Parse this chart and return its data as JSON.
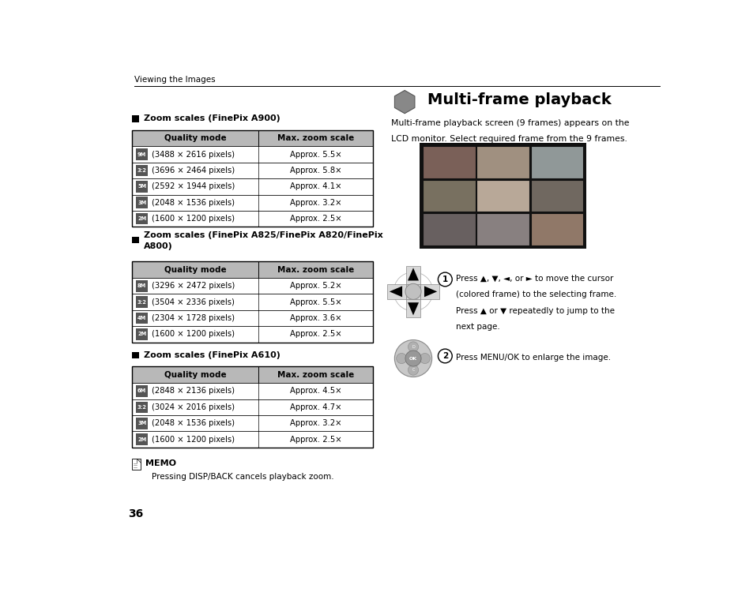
{
  "bg_color": "#ffffff",
  "page_width": 9.54,
  "page_height": 7.55,
  "header_text": "Viewing the Images",
  "page_number": "36",
  "section1_title": "Zoom scales (FinePix A900)",
  "table1_header": [
    "Quality mode",
    "Max. zoom scale"
  ],
  "table1_rows": [
    [
      "9M",
      "(3488 × 2616 pixels)",
      "Approx. 5.5×"
    ],
    [
      "3:2",
      "(3696 × 2464 pixels)",
      "Approx. 5.8×"
    ],
    [
      "5M",
      "(2592 × 1944 pixels)",
      "Approx. 4.1×"
    ],
    [
      "3M",
      "(2048 × 1536 pixels)",
      "Approx. 3.2×"
    ],
    [
      "2M",
      "(1600 × 1200 pixels)",
      "Approx. 2.5×"
    ]
  ],
  "section2_title_line1": "Zoom scales (FinePix A825/FinePix A820/FinePix",
  "section2_title_line2": "A800)",
  "table2_header": [
    "Quality mode",
    "Max. zoom scale"
  ],
  "table2_rows": [
    [
      "8M",
      "(3296 × 2472 pixels)",
      "Approx. 5.2×"
    ],
    [
      "3:2",
      "(3504 × 2336 pixels)",
      "Approx. 5.5×"
    ],
    [
      "4M",
      "(2304 × 1728 pixels)",
      "Approx. 3.6×"
    ],
    [
      "2M",
      "(1600 × 1200 pixels)",
      "Approx. 2.5×"
    ]
  ],
  "section3_title": "Zoom scales (FinePix A610)",
  "table3_header": [
    "Quality mode",
    "Max. zoom scale"
  ],
  "table3_rows": [
    [
      "6M",
      "(2848 × 2136 pixels)",
      "Approx. 4.5×"
    ],
    [
      "3:2",
      "(3024 × 2016 pixels)",
      "Approx. 4.7×"
    ],
    [
      "3M",
      "(2048 × 1536 pixels)",
      "Approx. 3.2×"
    ],
    [
      "2M",
      "(1600 × 1200 pixels)",
      "Approx. 2.5×"
    ]
  ],
  "memo_title": "MEMO",
  "memo_text": "Pressing DISP/BACK cancels playback zoom.",
  "right_section_title": "Multi-frame playback",
  "right_intro_line1": "Multi-frame playback screen (9 frames) appears on the",
  "right_intro_line2": "LCD monitor. Select required frame from the 9 frames.",
  "step1_lines": [
    "Press ▲, ▼, ◄, or ► to move the cursor",
    "(colored frame) to the selecting frame.",
    "Press ▲ or ▼ repeatedly to jump to the",
    "next page."
  ],
  "step2_text": "Press MENU/OK to enlarge the image.",
  "table_header_bg": "#b8b8b8",
  "hex_color": "#888888"
}
